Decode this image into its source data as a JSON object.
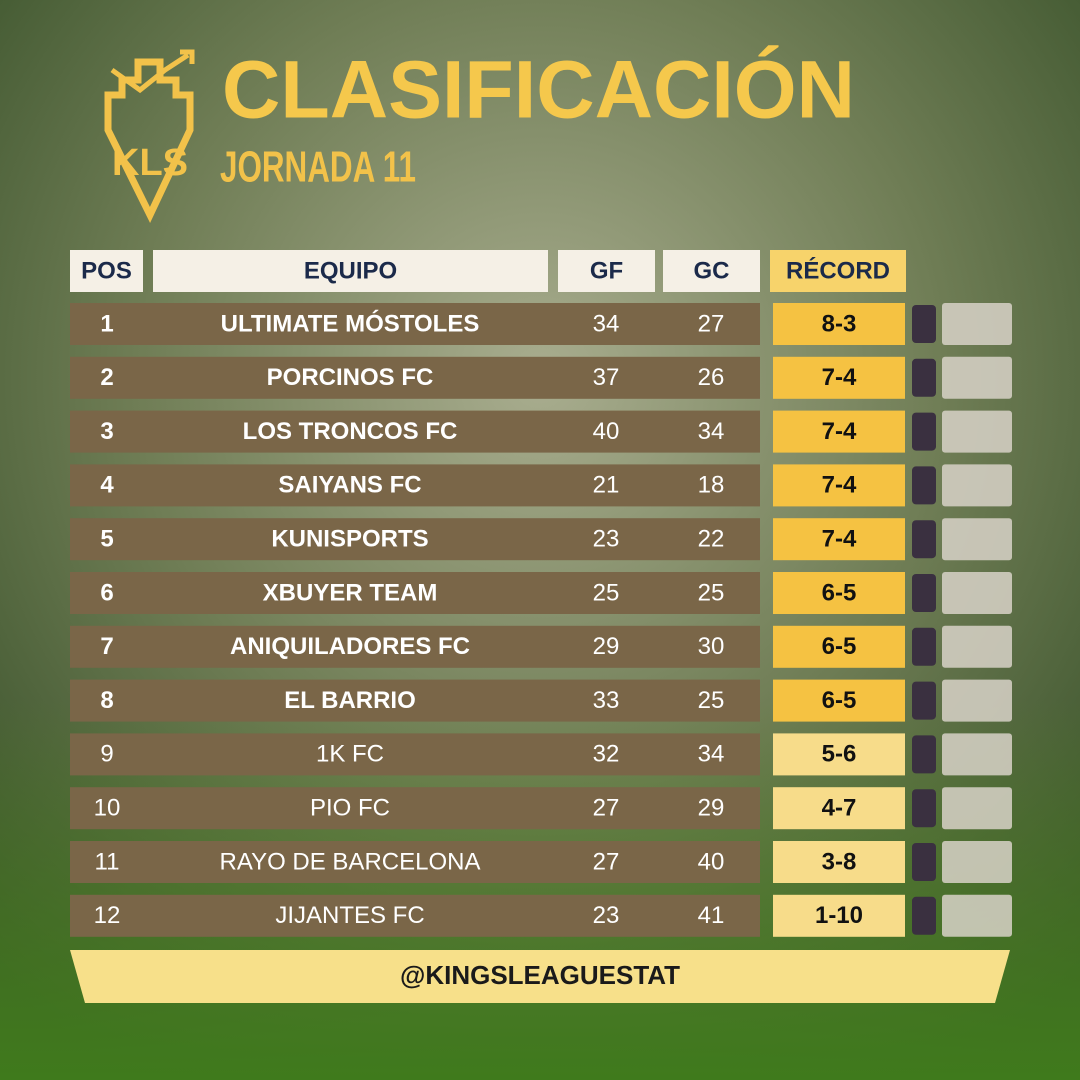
{
  "header": {
    "title": "CLASIFICACIÓN",
    "subtitle": "JORNADA 11"
  },
  "table": {
    "columns": [
      "POS",
      "EQUIPO",
      "GF",
      "GC",
      "RÉCORD"
    ],
    "rows": [
      [
        1,
        "ULTIMATE MÓSTOLES",
        34,
        27,
        "8-3"
      ],
      [
        2,
        "PORCINOS FC",
        37,
        26,
        "7-4"
      ],
      [
        3,
        "LOS TRONCOS FC",
        40,
        34,
        "7-4"
      ],
      [
        4,
        "SAIYANS FC",
        21,
        18,
        "7-4"
      ],
      [
        5,
        "KUNISPORTS",
        23,
        22,
        "7-4"
      ],
      [
        6,
        "XBUYER TEAM",
        25,
        25,
        "6-5"
      ],
      [
        7,
        "ANIQUILADORES FC",
        29,
        30,
        "6-5"
      ],
      [
        8,
        "EL BARRIO",
        33,
        25,
        "6-5"
      ],
      [
        9,
        "1K FC",
        32,
        34,
        "5-6"
      ],
      [
        10,
        "PIO FC",
        27,
        29,
        "4-7"
      ],
      [
        11,
        "RAYO DE BARCELONA",
        27,
        40,
        "3-8"
      ],
      [
        12,
        "JIJANTES FC",
        23,
        41,
        "1-10"
      ]
    ]
  },
  "footer": {
    "handle": "@KINGSLEAGUESTAT"
  }
}
